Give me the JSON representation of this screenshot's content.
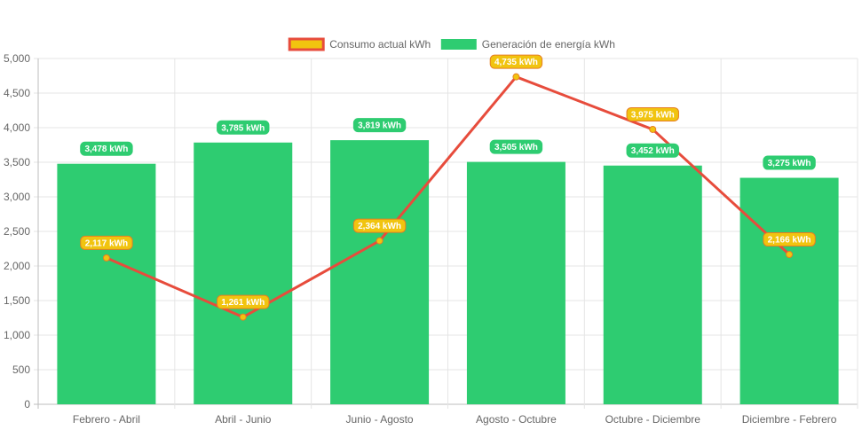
{
  "chart_data": {
    "type": "bar",
    "categories": [
      "Febrero - Abril",
      "Abril - Junio",
      "Junio - Agosto",
      "Agosto - Octubre",
      "Octubre - Diciembre",
      "Diciembre - Febrero"
    ],
    "series": [
      {
        "name": "Generación de energía kWh",
        "type": "bar",
        "values": [
          3478,
          3785,
          3819,
          3505,
          3452,
          3275
        ],
        "labels": [
          "3,478 kWh",
          "3,785 kWh",
          "3,819 kWh",
          "3,505 kWh",
          "3,452 kWh",
          "3,275 kWh"
        ],
        "color": "#2ecc71"
      },
      {
        "name": "Consumo actual kWh",
        "type": "line",
        "values": [
          2117,
          1261,
          2364,
          4735,
          3975,
          2166
        ],
        "labels": [
          "2,117 kWh",
          "1,261 kWh",
          "2,364 kWh",
          "4,735 kWh",
          "3,975 kWh",
          "2,166 kWh"
        ],
        "color": "#e74c3c",
        "point_color": "#f1c40f"
      }
    ],
    "legend_order": [
      "Consumo actual kWh",
      "Generación de energía kWh"
    ],
    "y_ticks": [
      "0",
      "500",
      "1,000",
      "1,500",
      "2,000",
      "2,500",
      "3,000",
      "3,500",
      "4,000",
      "4,500",
      "5,000"
    ],
    "ylim": [
      0,
      5000
    ],
    "y_step": 500,
    "grid": true,
    "legend_position": "top-center",
    "label_colors": {
      "bar": "#2ecc71",
      "line_fill": "#f1c40f",
      "line_border": "#e67e22"
    },
    "grid_color": "#e5e5e5",
    "axis_color": "#bdbdbd"
  }
}
